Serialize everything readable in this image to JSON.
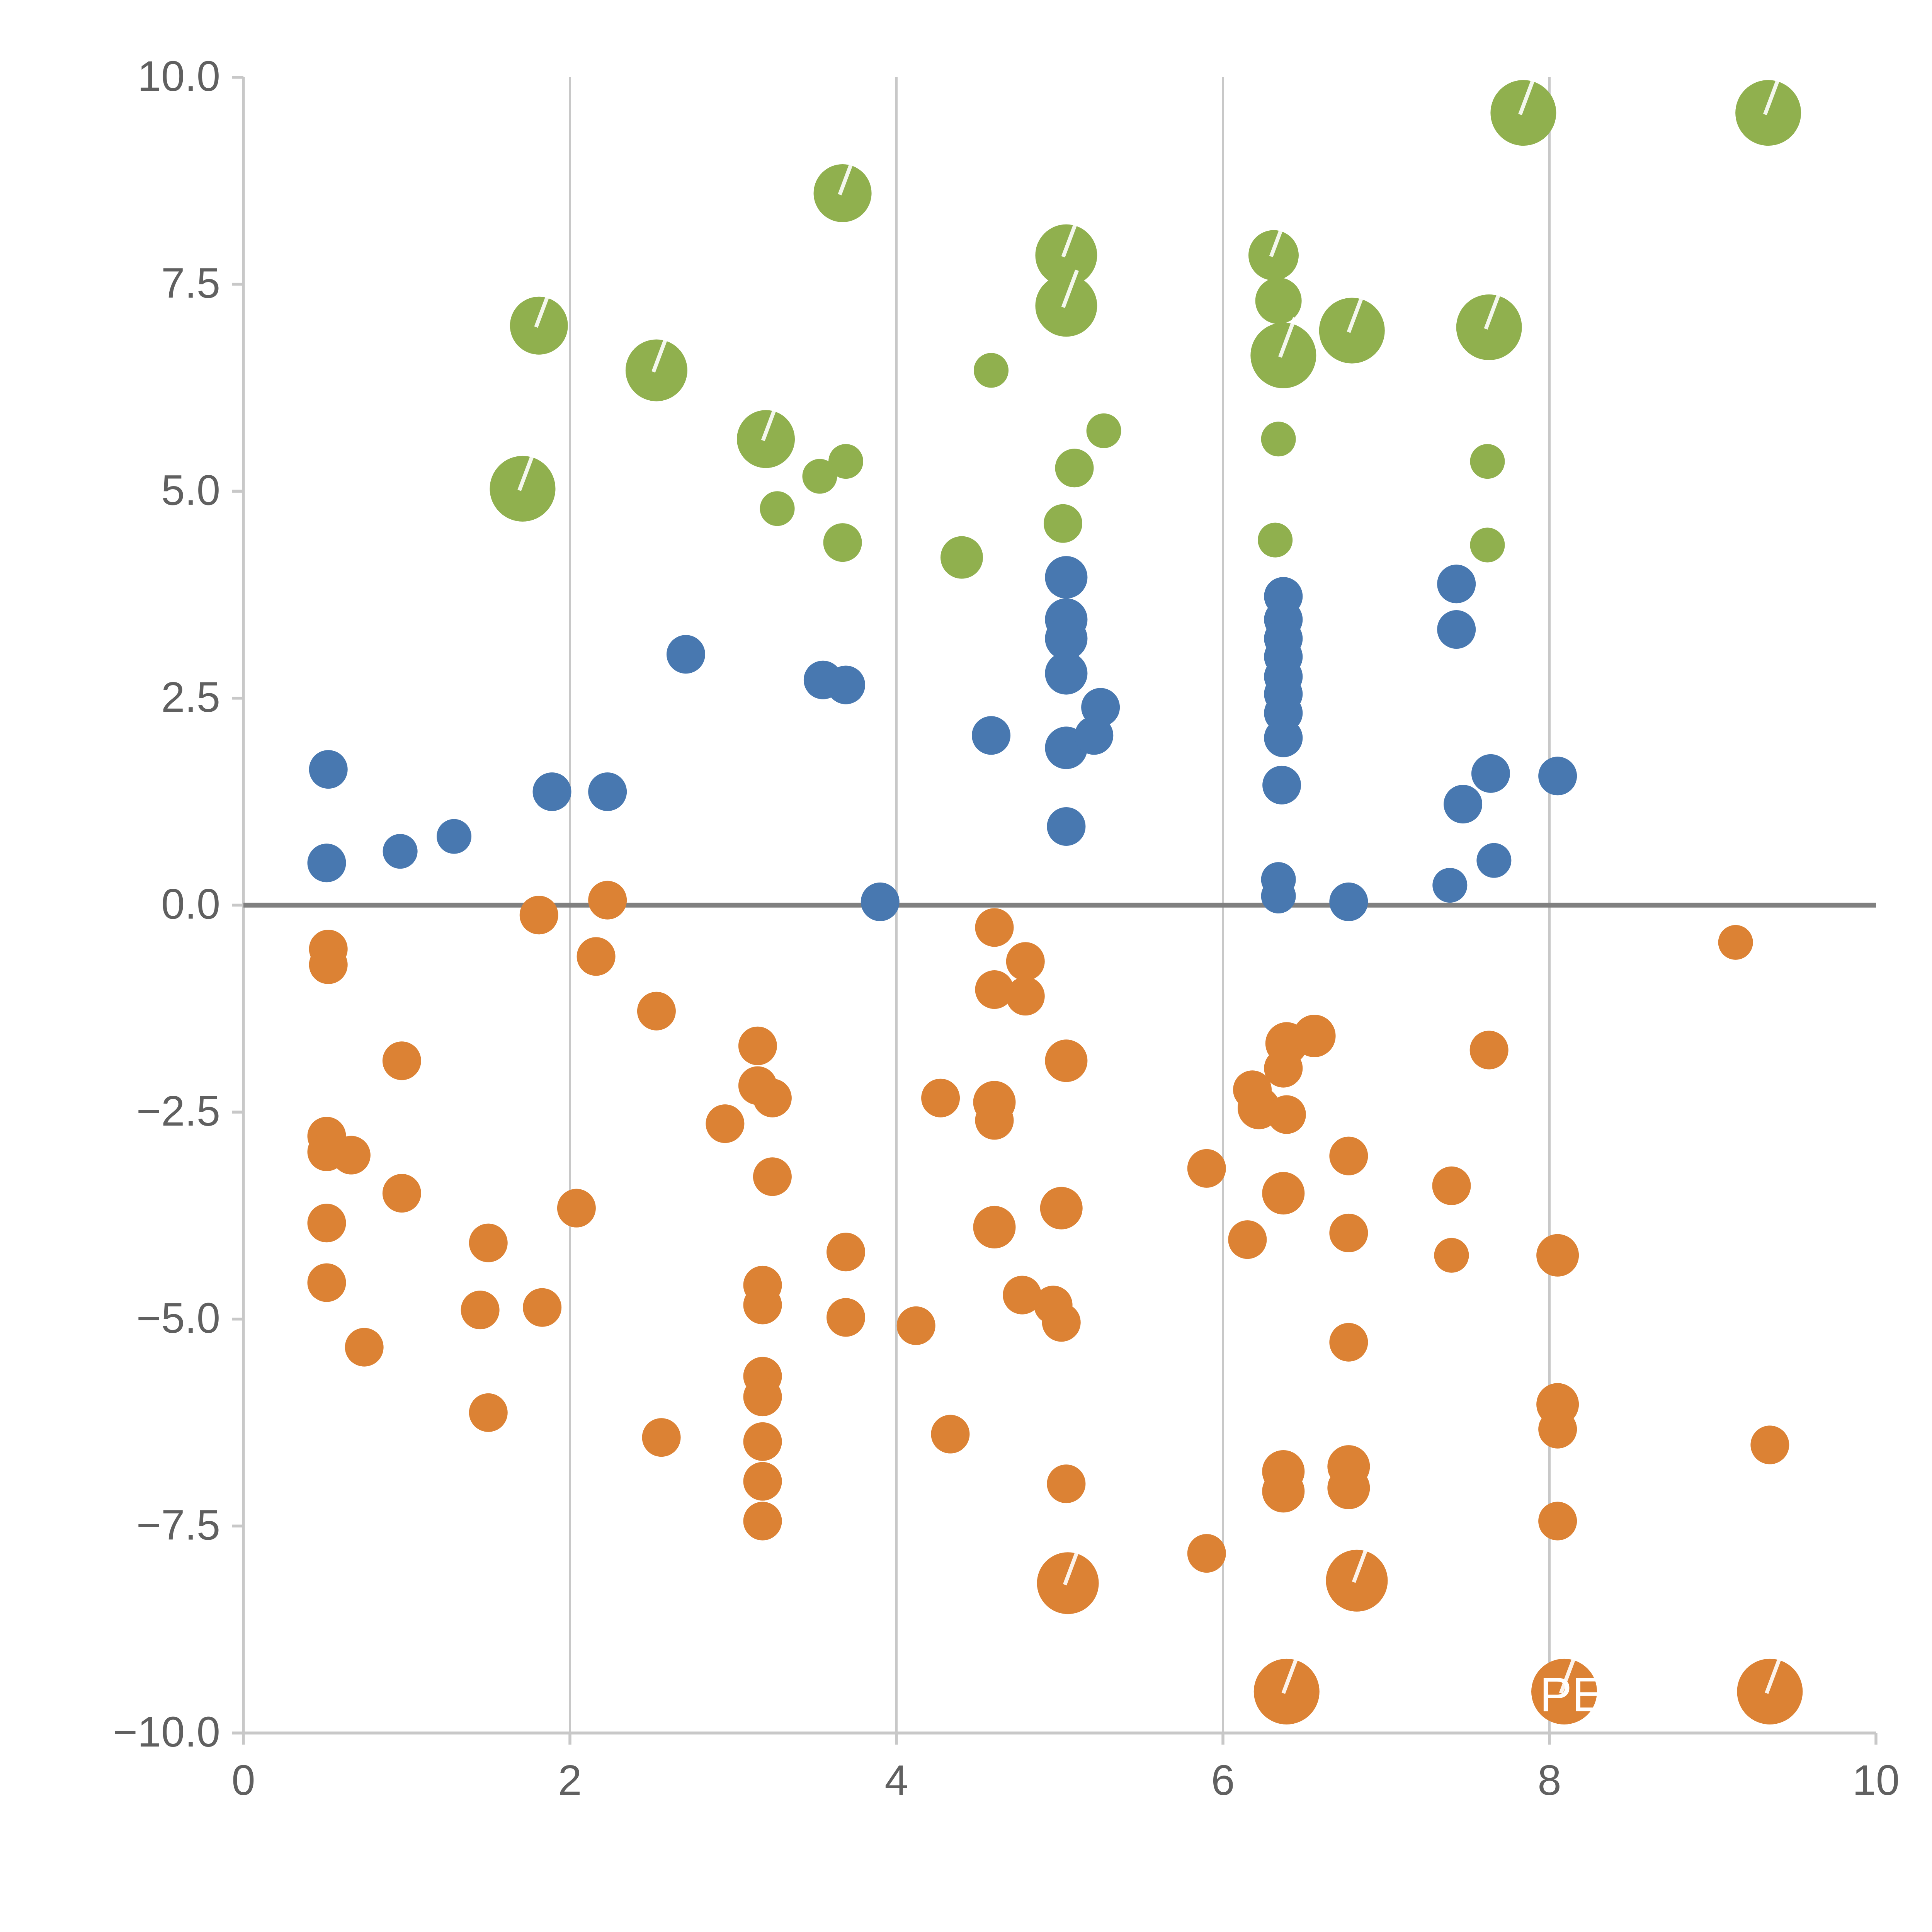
{
  "chart_data": {
    "type": "scatter",
    "title": "",
    "xlabel": "",
    "ylabel": "",
    "xlim": [
      0,
      10
    ],
    "ylim": [
      -10,
      10
    ],
    "x_ticks": {
      "values": [
        0,
        2,
        4,
        6,
        8,
        10
      ],
      "labels": [
        "0",
        "2",
        "4",
        "6",
        "8",
        "10"
      ]
    },
    "y_ticks": {
      "values": [
        10,
        7.5,
        5,
        2.5,
        0,
        -2.5,
        -5,
        -7.5,
        -10
      ],
      "labels": [
        "10.0",
        "7.5",
        "5.0",
        "2.5",
        "0.0",
        "−2.5",
        "−5.0",
        "−7.5",
        "−10.0"
      ]
    },
    "grid": {
      "x_values": [
        2,
        4,
        6,
        8
      ]
    },
    "zero_line_y": 0,
    "legend": "none",
    "style": {
      "grid_color": "#c8c8c8",
      "spine_color": "#c8c8c8",
      "zero_line_color": "#808080",
      "tick_label_color": "#606060",
      "background": "#ffffff",
      "highlight_color": "#ffffff"
    },
    "annotation": {
      "text": "PE",
      "x": 7.94,
      "y": -9.55,
      "color": "#ffffff",
      "font_size": 25
    },
    "series": [
      {
        "name": "green",
        "color": "#90b04e",
        "points": [
          [
            3.67,
            8.6,
            15
          ],
          [
            7.84,
            9.57,
            17
          ],
          [
            9.34,
            9.57,
            17
          ],
          [
            1.81,
            7.0,
            15
          ],
          [
            5.04,
            7.85,
            16
          ],
          [
            5.04,
            7.24,
            16
          ],
          [
            6.31,
            7.85,
            13
          ],
          [
            6.34,
            7.3,
            12
          ],
          [
            6.79,
            6.94,
            17
          ],
          [
            6.37,
            6.64,
            17
          ],
          [
            7.63,
            6.98,
            17
          ],
          [
            2.53,
            6.46,
            16
          ],
          [
            4.58,
            6.46,
            9
          ],
          [
            3.2,
            5.63,
            15
          ],
          [
            5.27,
            5.73,
            9
          ],
          [
            6.34,
            5.63,
            9
          ],
          [
            3.69,
            5.36,
            9
          ],
          [
            7.62,
            5.36,
            9
          ],
          [
            1.71,
            5.03,
            17
          ],
          [
            3.53,
            5.18,
            9
          ],
          [
            5.09,
            5.28,
            10
          ],
          [
            3.27,
            4.79,
            9
          ],
          [
            5.02,
            4.61,
            10
          ],
          [
            3.67,
            4.38,
            10
          ],
          [
            4.4,
            4.2,
            11
          ],
          [
            6.32,
            4.41,
            9
          ],
          [
            7.62,
            4.35,
            9
          ]
        ]
      },
      {
        "name": "blue",
        "color": "#4878b0",
        "points": [
          [
            0.52,
            1.64,
            10
          ],
          [
            0.51,
            0.51,
            10
          ],
          [
            0.96,
            0.65,
            9
          ],
          [
            1.29,
            0.83,
            9
          ],
          [
            1.89,
            1.37,
            10
          ],
          [
            2.23,
            1.37,
            10
          ],
          [
            2.71,
            3.03,
            10
          ],
          [
            3.55,
            2.72,
            10
          ],
          [
            3.69,
            2.66,
            10
          ],
          [
            3.9,
            0.04,
            10
          ],
          [
            4.58,
            2.05,
            10
          ],
          [
            5.04,
            3.96,
            11
          ],
          [
            5.04,
            3.45,
            11
          ],
          [
            5.04,
            3.22,
            11
          ],
          [
            5.04,
            2.8,
            11
          ],
          [
            5.04,
            1.9,
            11
          ],
          [
            5.04,
            0.95,
            10
          ],
          [
            5.25,
            2.39,
            10
          ],
          [
            5.21,
            2.05,
            10
          ],
          [
            6.37,
            3.73,
            10
          ],
          [
            6.37,
            3.45,
            10
          ],
          [
            6.37,
            3.22,
            10
          ],
          [
            6.37,
            3.0,
            10
          ],
          [
            6.37,
            2.76,
            10
          ],
          [
            6.37,
            2.55,
            10
          ],
          [
            6.37,
            2.32,
            10
          ],
          [
            6.37,
            2.02,
            10
          ],
          [
            6.36,
            1.45,
            10
          ],
          [
            6.34,
            0.31,
            9
          ],
          [
            6.34,
            0.11,
            9
          ],
          [
            6.77,
            0.04,
            10
          ],
          [
            7.43,
            3.88,
            10
          ],
          [
            7.43,
            3.33,
            10
          ],
          [
            7.39,
            0.24,
            9
          ],
          [
            7.47,
            1.22,
            10
          ],
          [
            7.64,
            1.59,
            10
          ],
          [
            7.66,
            0.54,
            9
          ],
          [
            8.05,
            1.56,
            10
          ]
        ]
      },
      {
        "name": "orange",
        "color": "#dc8234",
        "points": [
          [
            1.81,
            -0.12,
            10
          ],
          [
            2.23,
            0.06,
            10
          ],
          [
            0.52,
            -0.53,
            10
          ],
          [
            0.52,
            -0.72,
            10
          ],
          [
            2.16,
            -0.62,
            10
          ],
          [
            4.6,
            -0.27,
            10
          ],
          [
            9.14,
            -0.45,
            9
          ],
          [
            4.79,
            -0.68,
            10
          ],
          [
            4.6,
            -1.02,
            10
          ],
          [
            4.79,
            -1.1,
            10
          ],
          [
            2.53,
            -1.28,
            10
          ],
          [
            6.39,
            -1.67,
            11
          ],
          [
            6.56,
            -1.58,
            11
          ],
          [
            3.15,
            -1.7,
            10
          ],
          [
            5.04,
            -1.88,
            11
          ],
          [
            0.97,
            -1.88,
            10
          ],
          [
            7.63,
            -1.75,
            10
          ],
          [
            4.27,
            -2.33,
            10
          ],
          [
            4.6,
            -2.38,
            11
          ],
          [
            3.15,
            -2.18,
            10
          ],
          [
            3.24,
            -2.33,
            10
          ],
          [
            4.6,
            -2.6,
            10
          ],
          [
            2.95,
            -2.64,
            10
          ],
          [
            6.18,
            -2.23,
            10
          ],
          [
            6.22,
            -2.45,
            11
          ],
          [
            6.37,
            -1.97,
            10
          ],
          [
            6.39,
            -2.53,
            10
          ],
          [
            0.51,
            -2.79,
            10
          ],
          [
            0.51,
            -2.98,
            10
          ],
          [
            0.66,
            -3.02,
            10
          ],
          [
            5.9,
            -3.18,
            10
          ],
          [
            6.77,
            -3.03,
            10
          ],
          [
            3.24,
            -3.28,
            10
          ],
          [
            0.97,
            -3.48,
            10
          ],
          [
            6.37,
            -3.48,
            11
          ],
          [
            7.4,
            -3.39,
            10
          ],
          [
            2.04,
            -3.66,
            10
          ],
          [
            0.51,
            -3.84,
            10
          ],
          [
            5.01,
            -3.66,
            11
          ],
          [
            4.6,
            -3.89,
            11
          ],
          [
            1.5,
            -4.08,
            10
          ],
          [
            6.15,
            -4.04,
            10
          ],
          [
            6.77,
            -3.96,
            10
          ],
          [
            3.69,
            -4.19,
            10
          ],
          [
            8.05,
            -4.23,
            11
          ],
          [
            7.4,
            -4.23,
            9
          ],
          [
            0.51,
            -4.56,
            10
          ],
          [
            3.18,
            -4.59,
            10
          ],
          [
            4.77,
            -4.71,
            10
          ],
          [
            4.96,
            -4.83,
            10
          ],
          [
            1.45,
            -4.89,
            10
          ],
          [
            1.83,
            -4.86,
            10
          ],
          [
            3.18,
            -4.83,
            10
          ],
          [
            3.69,
            -4.98,
            10
          ],
          [
            4.12,
            -5.08,
            10
          ],
          [
            5.01,
            -5.04,
            10
          ],
          [
            6.77,
            -5.28,
            10
          ],
          [
            0.74,
            -5.34,
            10
          ],
          [
            3.18,
            -5.69,
            10
          ],
          [
            3.18,
            -5.94,
            10
          ],
          [
            8.05,
            -6.03,
            11
          ],
          [
            1.5,
            -6.13,
            10
          ],
          [
            8.05,
            -6.33,
            10
          ],
          [
            2.56,
            -6.43,
            10
          ],
          [
            4.33,
            -6.39,
            10
          ],
          [
            9.35,
            -6.52,
            10
          ],
          [
            3.18,
            -6.48,
            10
          ],
          [
            6.37,
            -6.84,
            11
          ],
          [
            6.77,
            -6.78,
            11
          ],
          [
            3.18,
            -6.96,
            10
          ],
          [
            6.37,
            -7.08,
            11
          ],
          [
            6.77,
            -7.04,
            11
          ],
          [
            5.04,
            -6.99,
            10
          ],
          [
            3.18,
            -7.44,
            10
          ],
          [
            8.05,
            -7.44,
            10
          ],
          [
            5.9,
            -7.83,
            10
          ],
          [
            5.05,
            -8.19,
            16
          ],
          [
            6.82,
            -8.16,
            16
          ],
          [
            6.39,
            -9.5,
            17
          ],
          [
            8.09,
            -9.5,
            17
          ],
          [
            9.35,
            -9.5,
            17
          ]
        ]
      }
    ]
  }
}
